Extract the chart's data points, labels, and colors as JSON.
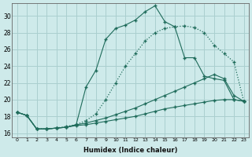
{
  "xlabel": "Humidex (Indice chaleur)",
  "background_color": "#ceeaea",
  "grid_color": "#aacfcf",
  "line_color": "#1e6b5a",
  "xlim": [
    -0.5,
    23.5
  ],
  "ylim": [
    15.5,
    31.5
  ],
  "yticks": [
    16,
    18,
    20,
    22,
    24,
    26,
    28,
    30
  ],
  "xticks": [
    0,
    1,
    2,
    3,
    4,
    5,
    6,
    7,
    8,
    9,
    10,
    11,
    12,
    13,
    14,
    15,
    16,
    17,
    18,
    19,
    20,
    21,
    22,
    23
  ],
  "series": [
    {
      "linestyle": "dotted",
      "x": [
        0,
        1,
        2,
        3,
        4,
        5,
        6,
        7,
        8,
        9,
        10,
        11,
        12,
        13,
        14,
        15,
        16,
        17,
        18,
        19,
        20,
        21,
        22,
        23
      ],
      "y": [
        18.5,
        18.1,
        16.5,
        16.5,
        16.6,
        16.8,
        17.0,
        17.5,
        18.3,
        20.0,
        22.0,
        24.0,
        25.5,
        27.0,
        28.0,
        28.5,
        28.7,
        28.8,
        28.6,
        28.0,
        26.5,
        25.5,
        24.5,
        19.8
      ]
    },
    {
      "linestyle": "solid",
      "x": [
        0,
        1,
        2,
        3,
        4,
        5,
        6,
        7,
        8,
        9,
        10,
        11,
        12,
        13,
        14,
        15,
        16,
        17,
        18,
        19,
        20,
        21,
        22,
        23
      ],
      "y": [
        18.5,
        18.1,
        16.5,
        16.5,
        16.6,
        16.7,
        17.0,
        21.5,
        23.5,
        27.2,
        28.5,
        28.9,
        29.5,
        30.5,
        31.2,
        29.3,
        28.7,
        25.0,
        25.0,
        22.8,
        22.5,
        22.3,
        20.0,
        19.8
      ]
    },
    {
      "linestyle": "solid",
      "x": [
        0,
        1,
        2,
        3,
        4,
        5,
        6,
        7,
        8,
        9,
        10,
        11,
        12,
        13,
        14,
        15,
        16,
        17,
        18,
        19,
        20,
        21,
        22,
        23
      ],
      "y": [
        18.5,
        18.1,
        16.5,
        16.5,
        16.6,
        16.7,
        17.0,
        17.2,
        17.5,
        17.8,
        18.2,
        18.6,
        19.0,
        19.5,
        20.0,
        20.5,
        21.0,
        21.5,
        22.0,
        22.5,
        23.0,
        22.5,
        20.5,
        19.8
      ]
    },
    {
      "linestyle": "solid",
      "x": [
        0,
        1,
        2,
        3,
        4,
        5,
        6,
        7,
        8,
        9,
        10,
        11,
        12,
        13,
        14,
        15,
        16,
        17,
        18,
        19,
        20,
        21,
        22,
        23
      ],
      "y": [
        18.5,
        18.1,
        16.5,
        16.5,
        16.6,
        16.7,
        16.9,
        17.0,
        17.2,
        17.4,
        17.6,
        17.8,
        18.0,
        18.3,
        18.6,
        18.9,
        19.1,
        19.3,
        19.5,
        19.7,
        19.9,
        20.0,
        20.0,
        19.8
      ]
    }
  ]
}
